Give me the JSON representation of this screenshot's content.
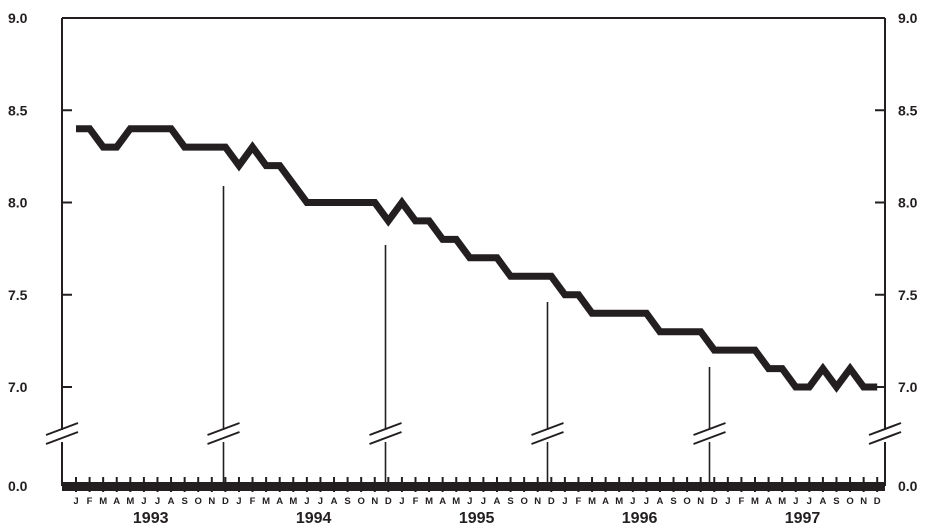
{
  "chart_data": {
    "type": "line",
    "title": "",
    "xlabel": "",
    "ylabel": "",
    "ylim": [
      0.0,
      9.0
    ],
    "axis_break": "between 0.0 and 7.0",
    "grid": false,
    "legend": "none",
    "y_ticks": [
      "0.0",
      "7.0",
      "7.5",
      "8.0",
      "8.5",
      "9.0"
    ],
    "month_labels": [
      "J",
      "F",
      "M",
      "A",
      "M",
      "J",
      "J",
      "A",
      "S",
      "O",
      "N",
      "D"
    ],
    "years": [
      "1993",
      "1994",
      "1995",
      "1996",
      "1997"
    ],
    "colors": {
      "line": "#231f20",
      "axis": "#231f20"
    },
    "series": [
      {
        "values": [
          8.4,
          8.4,
          8.3,
          8.3,
          8.4,
          8.4,
          8.4,
          8.4,
          8.3,
          8.3,
          8.3,
          8.3,
          8.2,
          8.3,
          8.2,
          8.2,
          8.1,
          8.0,
          8.0,
          8.0,
          8.0,
          8.0,
          8.0,
          7.9,
          8.0,
          7.9,
          7.9,
          7.8,
          7.8,
          7.7,
          7.7,
          7.7,
          7.6,
          7.6,
          7.6,
          7.6,
          7.5,
          7.5,
          7.4,
          7.4,
          7.4,
          7.4,
          7.4,
          7.3,
          7.3,
          7.3,
          7.3,
          7.2,
          7.2,
          7.2,
          7.2,
          7.1,
          7.1,
          7.0,
          7.0,
          7.1,
          7.0,
          7.1,
          7.0,
          7.0
        ]
      }
    ]
  }
}
